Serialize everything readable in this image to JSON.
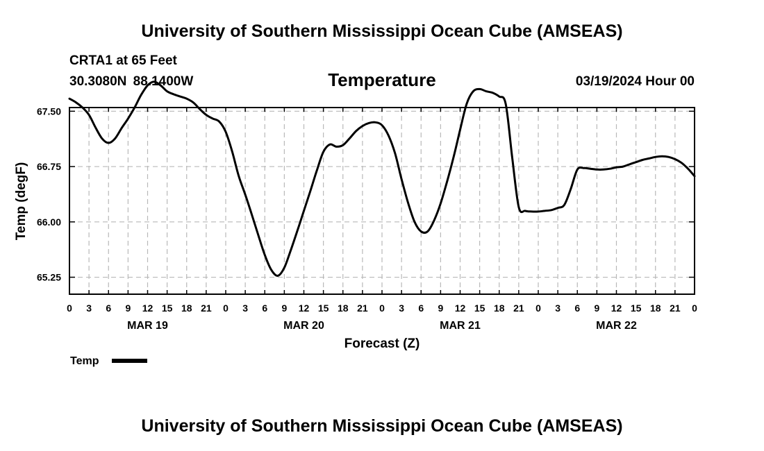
{
  "header": {
    "title": "University of Southern Mississippi Ocean Cube (AMSEAS)",
    "station": "CRTA1 at 65 Feet",
    "coords": "30.3080N  88.1400W",
    "date": "03/19/2024 Hour 00"
  },
  "footer": {
    "title": "University of Southern Mississippi Ocean Cube (AMSEAS)"
  },
  "chart_data": {
    "type": "line",
    "title": "Temperature",
    "xlabel": "Forecast (Z)",
    "ylabel": "Temp (degF)",
    "xlim": [
      0,
      96
    ],
    "ylim": [
      65.02,
      67.55
    ],
    "grid": true,
    "y_ticks": [
      65.25,
      66.0,
      66.75,
      67.5
    ],
    "y_tick_labels": [
      "65.25",
      "66.00",
      "66.75",
      "67.50"
    ],
    "x_ticks": [
      0,
      3,
      6,
      9,
      12,
      15,
      18,
      21,
      24,
      27,
      30,
      33,
      36,
      39,
      42,
      45,
      48,
      51,
      54,
      57,
      60,
      63,
      66,
      69,
      72,
      75,
      78,
      81,
      84,
      87,
      90,
      93,
      96
    ],
    "x_tick_labels": [
      "0",
      "3",
      "6",
      "9",
      "12",
      "15",
      "18",
      "21",
      "0",
      "3",
      "6",
      "9",
      "12",
      "15",
      "18",
      "21",
      "0",
      "3",
      "6",
      "9",
      "12",
      "15",
      "18",
      "21",
      "0",
      "3",
      "6",
      "9",
      "12",
      "15",
      "18",
      "21",
      "0"
    ],
    "day_labels": [
      {
        "x": 12,
        "label": "MAR 19"
      },
      {
        "x": 36,
        "label": "MAR 20"
      },
      {
        "x": 60,
        "label": "MAR 21"
      },
      {
        "x": 84,
        "label": "MAR 22"
      }
    ],
    "legend": {
      "position": "bottom-left",
      "label": "Temp"
    },
    "series": [
      {
        "name": "Temp",
        "x": [
          0,
          1,
          2,
          3,
          4,
          5,
          6,
          7,
          8,
          9,
          10,
          11,
          12,
          13,
          14,
          15,
          16,
          17,
          18,
          19,
          20,
          21,
          22,
          23,
          24,
          25,
          26,
          27,
          28,
          29,
          30,
          31,
          32,
          33,
          34,
          35,
          36,
          37,
          38,
          39,
          40,
          41,
          42,
          43,
          44,
          45,
          46,
          47,
          48,
          49,
          50,
          51,
          52,
          53,
          54,
          55,
          56,
          57,
          58,
          59,
          60,
          61,
          62,
          63,
          64,
          65,
          66,
          67,
          68,
          69,
          70,
          71,
          72,
          73,
          74,
          75,
          76,
          77,
          78,
          79,
          80,
          81,
          82,
          83,
          84,
          85,
          86,
          87,
          88,
          89,
          90,
          91,
          92,
          93,
          94,
          95,
          96
        ],
        "values": [
          67.67,
          67.62,
          67.55,
          67.45,
          67.28,
          67.13,
          67.07,
          67.13,
          67.27,
          67.4,
          67.55,
          67.72,
          67.85,
          67.9,
          67.85,
          67.77,
          67.73,
          67.7,
          67.67,
          67.62,
          67.53,
          67.45,
          67.4,
          67.36,
          67.22,
          66.95,
          66.62,
          66.37,
          66.1,
          65.82,
          65.55,
          65.35,
          65.27,
          65.38,
          65.62,
          65.88,
          66.15,
          66.42,
          66.7,
          66.95,
          67.05,
          67.02,
          67.04,
          67.13,
          67.23,
          67.3,
          67.34,
          67.35,
          67.31,
          67.17,
          66.93,
          66.58,
          66.26,
          66.0,
          65.87,
          65.87,
          66.02,
          66.25,
          66.55,
          66.88,
          67.25,
          67.6,
          67.77,
          67.8,
          67.77,
          67.75,
          67.7,
          67.6,
          66.87,
          66.2,
          66.15,
          66.14,
          66.14,
          66.15,
          66.16,
          66.19,
          66.23,
          66.45,
          66.71,
          66.73,
          66.72,
          66.71,
          66.71,
          66.72,
          66.74,
          66.75,
          66.78,
          66.81,
          66.84,
          66.86,
          66.88,
          66.89,
          66.88,
          66.85,
          66.8,
          66.72,
          66.62
        ]
      }
    ]
  }
}
